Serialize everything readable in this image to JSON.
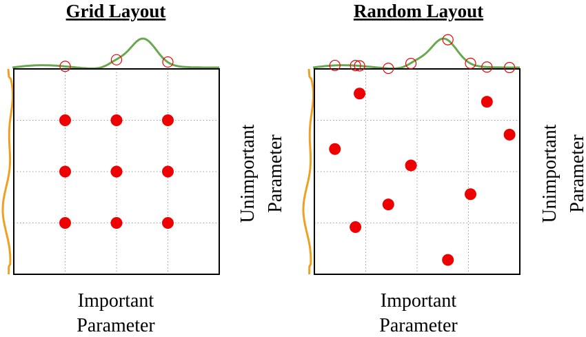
{
  "colors": {
    "point": "#ee0000",
    "important_curve": "#6aa84f",
    "unimportant_curve": "#f0a020",
    "projection": "#ee0000"
  },
  "panels": [
    {
      "id": "grid",
      "title": "Grid Layout",
      "xlabel_lines": [
        "Important",
        "Parameter"
      ],
      "ylabel_lines": [
        "Unimportant",
        "Parameter"
      ],
      "points": [
        [
          0.25,
          0.75
        ],
        [
          0.5,
          0.75
        ],
        [
          0.75,
          0.75
        ],
        [
          0.25,
          0.5
        ],
        [
          0.5,
          0.5
        ],
        [
          0.75,
          0.5
        ],
        [
          0.25,
          0.25
        ],
        [
          0.5,
          0.25
        ],
        [
          0.75,
          0.25
        ]
      ]
    },
    {
      "id": "random",
      "title": "Random Layout",
      "xlabel_lines": [
        "Important",
        "Parameter"
      ],
      "ylabel_lines": [
        "Unimportant",
        "Parameter"
      ],
      "points": [
        [
          0.22,
          0.88
        ],
        [
          0.84,
          0.84
        ],
        [
          0.95,
          0.68
        ],
        [
          0.1,
          0.61
        ],
        [
          0.47,
          0.53
        ],
        [
          0.76,
          0.39
        ],
        [
          0.36,
          0.34
        ],
        [
          0.2,
          0.23
        ],
        [
          0.65,
          0.07
        ]
      ]
    }
  ]
}
